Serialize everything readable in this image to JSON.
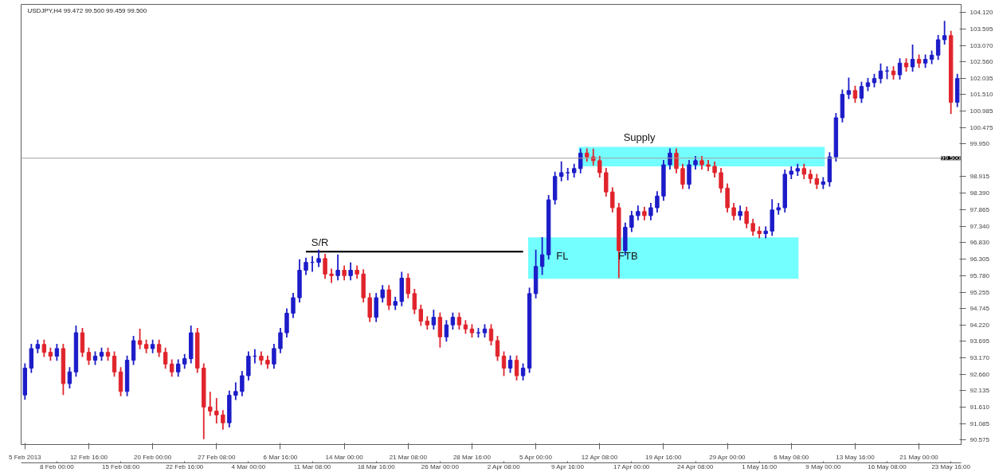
{
  "chart_data": {
    "type": "candlestick",
    "title": "USDJPY,H4 99.472 99.500 99.459 99.500",
    "categories": [
      "5 Feb 2013",
      null,
      null,
      null,
      null,
      "8 Feb 00:00",
      null,
      null,
      null,
      null,
      "12 Feb 16:00",
      null,
      null,
      null,
      null,
      "15 Feb 08:00",
      null,
      null,
      null,
      null,
      "20 Feb 00:00",
      null,
      null,
      null,
      null,
      "22 Feb 16:00",
      null,
      null,
      null,
      null,
      "27 Feb 08:00",
      null,
      null,
      null,
      null,
      "4 Mar 00:00",
      null,
      null,
      null,
      null,
      "6 Mar 16:00",
      null,
      null,
      null,
      null,
      "11 Mar 08:00",
      null,
      null,
      null,
      null,
      "14 Mar 00:00",
      null,
      null,
      null,
      null,
      "18 Mar 16:00",
      null,
      null,
      null,
      null,
      "21 Mar 08:00",
      null,
      null,
      null,
      null,
      "26 Mar 00:00",
      null,
      null,
      null,
      null,
      "28 Mar 16:00",
      null,
      null,
      null,
      null,
      "2 Apr 08:00",
      null,
      null,
      null,
      null,
      "5 Apr 00:00",
      null,
      null,
      null,
      null,
      "9 Apr 16:00",
      null,
      null,
      null,
      null,
      "12 Apr 08:00",
      null,
      null,
      null,
      null,
      "17 Apr 00:00",
      null,
      null,
      null,
      null,
      "19 Apr 16:00",
      null,
      null,
      null,
      null,
      "24 Apr 08:00",
      null,
      null,
      null,
      null,
      "29 Apr 00:00",
      null,
      null,
      null,
      null,
      "1 May 16:00",
      null,
      null,
      null,
      null,
      "6 May 08:00",
      null,
      null,
      null,
      null,
      "9 May 00:00",
      null,
      null,
      null,
      null,
      "13 May 16:00",
      null,
      null,
      null,
      null,
      "16 May 08:00",
      null,
      null,
      null,
      null,
      "21 May 00:00",
      null,
      null,
      null,
      null,
      "23 May 16:00",
      null
    ],
    "ohlc": [
      [
        92.0,
        93.0,
        91.85,
        92.85
      ],
      [
        92.85,
        93.62,
        92.7,
        93.47
      ],
      [
        93.47,
        93.75,
        93.32,
        93.6
      ],
      [
        93.6,
        93.75,
        93.2,
        93.35
      ],
      [
        93.35,
        93.5,
        93.08,
        93.23
      ],
      [
        93.23,
        93.62,
        93.08,
        93.47
      ],
      [
        93.47,
        93.62,
        92.0,
        92.36
      ],
      [
        92.36,
        92.88,
        92.21,
        92.73
      ],
      [
        92.73,
        94.2,
        92.58,
        93.97
      ],
      [
        93.97,
        94.12,
        93.2,
        93.35
      ],
      [
        93.35,
        93.5,
        92.95,
        93.1
      ],
      [
        93.1,
        93.38,
        92.95,
        93.23
      ],
      [
        93.23,
        93.5,
        93.08,
        93.35
      ],
      [
        93.35,
        93.5,
        93.08,
        93.23
      ],
      [
        93.23,
        93.38,
        92.58,
        92.73
      ],
      [
        92.73,
        92.88,
        91.96,
        92.11
      ],
      [
        92.11,
        93.25,
        91.96,
        93.1
      ],
      [
        93.1,
        93.87,
        92.95,
        93.72
      ],
      [
        93.72,
        94.1,
        93.45,
        93.6
      ],
      [
        93.6,
        93.75,
        93.32,
        93.47
      ],
      [
        93.47,
        93.75,
        93.32,
        93.6
      ],
      [
        93.6,
        93.75,
        93.2,
        93.35
      ],
      [
        93.35,
        93.5,
        92.83,
        92.98
      ],
      [
        92.98,
        93.13,
        92.58,
        92.73
      ],
      [
        92.73,
        93.13,
        92.58,
        92.98
      ],
      [
        92.98,
        93.3,
        92.83,
        93.15
      ],
      [
        93.15,
        94.2,
        93.0,
        93.97
      ],
      [
        93.97,
        94.12,
        92.7,
        92.85
      ],
      [
        92.85,
        93.0,
        90.6,
        91.62
      ],
      [
        91.62,
        92.1,
        91.34,
        91.49
      ],
      [
        91.49,
        91.9,
        91.1,
        91.37
      ],
      [
        91.37,
        91.52,
        90.9,
        91.12
      ],
      [
        91.12,
        92.14,
        90.97,
        91.99
      ],
      [
        91.99,
        92.4,
        91.84,
        92.11
      ],
      [
        92.11,
        92.76,
        91.96,
        92.61
      ],
      [
        92.61,
        93.38,
        92.46,
        93.23
      ],
      [
        93.23,
        93.45,
        93.0,
        93.23
      ],
      [
        93.23,
        93.38,
        92.95,
        93.1
      ],
      [
        93.1,
        93.25,
        92.83,
        92.98
      ],
      [
        92.98,
        93.62,
        92.83,
        93.47
      ],
      [
        93.47,
        94.12,
        93.32,
        93.97
      ],
      [
        93.97,
        94.74,
        93.82,
        94.59
      ],
      [
        94.59,
        95.23,
        94.44,
        95.08
      ],
      [
        95.08,
        96.3,
        94.93,
        95.95
      ],
      [
        95.95,
        96.35,
        95.8,
        96.2
      ],
      [
        96.2,
        96.4,
        95.9,
        96.2
      ],
      [
        96.2,
        96.6,
        96.05,
        96.32
      ],
      [
        96.32,
        96.47,
        95.68,
        95.83
      ],
      [
        95.83,
        96.0,
        95.55,
        95.78
      ],
      [
        95.78,
        96.45,
        95.63,
        95.95
      ],
      [
        95.95,
        96.1,
        95.63,
        95.78
      ],
      [
        95.78,
        96.2,
        95.63,
        95.95
      ],
      [
        95.95,
        96.1,
        95.68,
        95.83
      ],
      [
        95.83,
        95.98,
        94.93,
        95.08
      ],
      [
        95.08,
        95.23,
        94.31,
        94.46
      ],
      [
        94.46,
        95.23,
        94.31,
        95.08
      ],
      [
        95.08,
        95.48,
        94.93,
        95.33
      ],
      [
        95.33,
        95.48,
        94.69,
        94.84
      ],
      [
        94.84,
        95.11,
        94.69,
        94.96
      ],
      [
        94.96,
        95.9,
        94.81,
        95.7
      ],
      [
        95.7,
        95.85,
        95.06,
        95.21
      ],
      [
        95.21,
        95.36,
        94.56,
        94.71
      ],
      [
        94.71,
        94.86,
        94.19,
        94.34
      ],
      [
        94.34,
        94.49,
        94.07,
        94.22
      ],
      [
        94.22,
        94.7,
        94.07,
        94.46
      ],
      [
        94.46,
        94.61,
        93.5,
        93.84
      ],
      [
        93.84,
        94.37,
        93.69,
        94.22
      ],
      [
        94.22,
        94.61,
        94.07,
        94.46
      ],
      [
        94.46,
        94.61,
        94.07,
        94.22
      ],
      [
        94.22,
        94.37,
        93.94,
        94.09
      ],
      [
        94.09,
        94.24,
        93.82,
        93.97
      ],
      [
        93.97,
        94.12,
        93.82,
        93.97
      ],
      [
        93.97,
        94.24,
        93.82,
        94.09
      ],
      [
        94.09,
        94.24,
        93.57,
        93.72
      ],
      [
        93.72,
        93.87,
        93.08,
        93.23
      ],
      [
        93.23,
        93.38,
        92.6,
        92.85
      ],
      [
        92.85,
        93.25,
        92.7,
        93.1
      ],
      [
        93.1,
        93.25,
        92.46,
        92.61
      ],
      [
        92.61,
        93.0,
        92.46,
        92.85
      ],
      [
        92.85,
        95.4,
        92.7,
        95.21
      ],
      [
        95.21,
        96.6,
        95.06,
        96.07
      ],
      [
        96.07,
        97.0,
        95.8,
        96.44
      ],
      [
        96.44,
        98.33,
        96.29,
        98.18
      ],
      [
        98.18,
        99.07,
        98.03,
        98.92
      ],
      [
        98.92,
        99.4,
        98.77,
        99.04
      ],
      [
        99.04,
        99.19,
        98.8,
        99.04
      ],
      [
        99.04,
        99.32,
        98.89,
        99.17
      ],
      [
        99.17,
        99.81,
        99.02,
        99.66
      ],
      [
        99.66,
        99.81,
        99.39,
        99.54
      ],
      [
        99.54,
        99.8,
        99.27,
        99.42
      ],
      [
        99.42,
        99.57,
        98.89,
        99.04
      ],
      [
        99.04,
        99.19,
        98.28,
        98.43
      ],
      [
        98.43,
        98.58,
        97.78,
        97.93
      ],
      [
        97.93,
        98.08,
        95.7,
        96.57
      ],
      [
        96.57,
        97.46,
        96.42,
        97.31
      ],
      [
        97.31,
        97.83,
        97.16,
        97.68
      ],
      [
        97.68,
        98.0,
        97.53,
        97.81
      ],
      [
        97.81,
        97.96,
        97.53,
        97.68
      ],
      [
        97.68,
        98.08,
        97.53,
        97.93
      ],
      [
        97.93,
        98.45,
        97.78,
        98.3
      ],
      [
        98.3,
        99.44,
        98.15,
        99.29
      ],
      [
        99.29,
        99.81,
        99.14,
        99.66
      ],
      [
        99.66,
        99.81,
        99.02,
        99.17
      ],
      [
        99.17,
        99.32,
        98.52,
        98.67
      ],
      [
        98.67,
        99.44,
        98.52,
        99.29
      ],
      [
        99.29,
        99.57,
        99.14,
        99.42
      ],
      [
        99.42,
        99.57,
        99.14,
        99.29
      ],
      [
        99.29,
        99.44,
        99.09,
        99.24
      ],
      [
        99.24,
        99.39,
        98.89,
        99.04
      ],
      [
        99.04,
        99.19,
        98.4,
        98.55
      ],
      [
        98.55,
        98.7,
        97.78,
        97.93
      ],
      [
        97.93,
        98.08,
        97.53,
        97.68
      ],
      [
        97.68,
        98.0,
        97.53,
        97.81
      ],
      [
        97.81,
        97.96,
        97.28,
        97.43
      ],
      [
        97.43,
        97.58,
        97.04,
        97.19
      ],
      [
        97.19,
        97.34,
        96.96,
        97.11
      ],
      [
        97.11,
        97.34,
        96.96,
        97.19
      ],
      [
        97.19,
        98.2,
        97.04,
        97.86
      ],
      [
        97.86,
        98.08,
        97.71,
        97.93
      ],
      [
        97.93,
        99.14,
        97.78,
        98.99
      ],
      [
        98.99,
        99.24,
        98.84,
        99.09
      ],
      [
        99.09,
        99.32,
        98.94,
        99.17
      ],
      [
        99.17,
        99.32,
        98.84,
        98.99
      ],
      [
        98.99,
        99.14,
        98.7,
        98.85
      ],
      [
        98.85,
        99.0,
        98.52,
        98.67
      ],
      [
        98.67,
        98.9,
        98.52,
        98.75
      ],
      [
        98.75,
        99.69,
        98.6,
        99.54
      ],
      [
        99.54,
        100.93,
        99.39,
        100.78
      ],
      [
        100.78,
        101.67,
        100.63,
        101.52
      ],
      [
        101.52,
        102.05,
        101.37,
        101.64
      ],
      [
        101.64,
        101.79,
        101.25,
        101.4
      ],
      [
        101.4,
        101.92,
        101.25,
        101.77
      ],
      [
        101.77,
        102.04,
        101.62,
        101.89
      ],
      [
        101.89,
        102.17,
        101.74,
        102.02
      ],
      [
        102.02,
        102.5,
        101.87,
        102.26
      ],
      [
        102.26,
        102.41,
        102.0,
        102.26
      ],
      [
        102.26,
        102.41,
        101.99,
        102.14
      ],
      [
        102.14,
        102.66,
        101.99,
        102.51
      ],
      [
        102.51,
        102.66,
        102.24,
        102.39
      ],
      [
        102.39,
        103.1,
        102.24,
        102.63
      ],
      [
        102.63,
        102.78,
        102.36,
        102.51
      ],
      [
        102.51,
        102.78,
        102.36,
        102.63
      ],
      [
        102.63,
        102.91,
        102.48,
        102.76
      ],
      [
        102.76,
        103.4,
        102.61,
        103.25
      ],
      [
        103.25,
        103.85,
        103.1,
        103.38
      ],
      [
        103.38,
        103.53,
        100.9,
        101.27
      ],
      [
        101.27,
        102.17,
        101.12,
        102.02
      ]
    ],
    "colors": [
      "#1c1cc8",
      "#1c1cc8",
      "#1c1cc8",
      "#e0242c",
      "#e0242c",
      "#1c1cc8",
      "#e0242c",
      "#1c1cc8",
      "#1c1cc8",
      "#e0242c",
      "#e0242c",
      "#1c1cc8",
      "#1c1cc8",
      "#e0242c",
      "#e0242c",
      "#e0242c",
      "#1c1cc8",
      "#1c1cc8",
      "#e0242c",
      "#e0242c",
      "#1c1cc8",
      "#e0242c",
      "#e0242c",
      "#e0242c",
      "#1c1cc8",
      "#1c1cc8",
      "#1c1cc8",
      "#e0242c",
      "#e0242c",
      "#e0242c",
      "#e0242c",
      "#e0242c",
      "#1c1cc8",
      "#1c1cc8",
      "#1c1cc8",
      "#1c1cc8",
      "#1c1cc8",
      "#e0242c",
      "#e0242c",
      "#1c1cc8",
      "#1c1cc8",
      "#1c1cc8",
      "#1c1cc8",
      "#1c1cc8",
      "#1c1cc8",
      "#1c1cc8",
      "#1c1cc8",
      "#e0242c",
      "#e0242c",
      "#1c1cc8",
      "#e0242c",
      "#1c1cc8",
      "#e0242c",
      "#e0242c",
      "#e0242c",
      "#1c1cc8",
      "#1c1cc8",
      "#e0242c",
      "#1c1cc8",
      "#1c1cc8",
      "#e0242c",
      "#e0242c",
      "#e0242c",
      "#e0242c",
      "#1c1cc8",
      "#e0242c",
      "#1c1cc8",
      "#1c1cc8",
      "#e0242c",
      "#e0242c",
      "#e0242c",
      "#1c1cc8",
      "#1c1cc8",
      "#e0242c",
      "#e0242c",
      "#e0242c",
      "#1c1cc8",
      "#e0242c",
      "#1c1cc8",
      "#1c1cc8",
      "#1c1cc8",
      "#1c1cc8",
      "#1c1cc8",
      "#1c1cc8",
      "#1c1cc8",
      "#1c1cc8",
      "#1c1cc8",
      "#1c1cc8",
      "#e0242c",
      "#e0242c",
      "#e0242c",
      "#e0242c",
      "#e0242c",
      "#e0242c",
      "#1c1cc8",
      "#1c1cc8",
      "#1c1cc8",
      "#e0242c",
      "#1c1cc8",
      "#1c1cc8",
      "#1c1cc8",
      "#1c1cc8",
      "#e0242c",
      "#e0242c",
      "#1c1cc8",
      "#1c1cc8",
      "#e0242c",
      "#e0242c",
      "#e0242c",
      "#e0242c",
      "#e0242c",
      "#e0242c",
      "#1c1cc8",
      "#e0242c",
      "#e0242c",
      "#e0242c",
      "#1c1cc8",
      "#1c1cc8",
      "#1c1cc8",
      "#1c1cc8",
      "#1c1cc8",
      "#1c1cc8",
      "#e0242c",
      "#e0242c",
      "#e0242c",
      "#1c1cc8",
      "#1c1cc8",
      "#1c1cc8",
      "#1c1cc8",
      "#1c1cc8",
      "#e0242c",
      "#1c1cc8",
      "#1c1cc8",
      "#1c1cc8",
      "#1c1cc8",
      "#1c1cc8",
      "#e0242c",
      "#1c1cc8",
      "#e0242c",
      "#1c1cc8",
      "#e0242c",
      "#1c1cc8",
      "#1c1cc8",
      "#1c1cc8",
      "#1c1cc8",
      "#e0242c",
      "#1c1cc8"
    ],
    "series": [
      {
        "type": "line",
        "color": "#000000",
        "values": [
          null,
          null,
          null,
          null,
          null,
          null,
          null,
          null,
          null,
          null,
          null,
          null,
          null,
          null,
          null,
          null,
          null,
          null,
          null,
          null,
          null,
          null,
          null,
          null,
          null,
          null,
          null,
          null,
          null,
          null,
          null,
          null,
          null,
          null,
          null,
          null,
          null,
          null,
          null,
          null,
          null,
          null,
          null,
          null,
          96.54,
          96.54,
          96.54,
          96.54,
          96.54,
          96.54,
          96.54,
          96.54,
          96.54,
          96.54,
          96.54,
          96.54,
          96.54,
          96.54,
          96.54,
          96.54,
          96.54,
          96.54,
          96.54,
          96.54,
          96.54,
          96.54,
          96.54,
          96.54,
          96.54,
          96.54,
          96.54,
          96.54,
          96.54,
          96.54,
          96.54,
          96.54,
          96.54,
          96.54,
          96.54,
          null,
          null,
          null,
          null,
          null,
          null,
          null,
          null,
          null,
          null,
          null,
          null,
          null,
          null,
          null,
          null,
          null,
          null,
          null,
          null,
          null,
          null,
          null,
          null,
          null,
          null,
          null,
          null,
          null,
          null,
          null,
          null,
          null,
          null,
          null,
          null,
          null,
          null,
          null,
          null,
          null,
          null,
          null,
          null,
          null,
          null,
          null,
          null,
          null,
          null,
          null,
          null,
          null,
          null,
          null,
          null,
          null,
          null,
          null,
          null,
          null,
          null,
          null,
          null,
          null,
          null,
          null,
          null
        ]
      }
    ],
    "annotations": [
      "S/R",
      "FL",
      "FTB"
    ],
    "bands": [
      {
        "axis": "y",
        "from": 99.24,
        "to": 99.86,
        "label": "Supply",
        "color": "#00ffff"
      },
      {
        "axis": "y",
        "from": 95.68,
        "to": 96.99,
        "color": "#00ffff"
      }
    ],
    "ref_lines": [
      {
        "axis": "y",
        "value": 99.5,
        "label": "99.500",
        "color": "#a0a0a0"
      }
    ],
    "ylim": [
      90.43,
      104.37
    ],
    "yticks": [
      {
        "value": 90.575,
        "label": "90.575"
      },
      {
        "value": 91.085,
        "label": "91.085"
      },
      {
        "value": 91.61,
        "label": "91.610"
      },
      {
        "value": 92.135,
        "label": "92.135"
      },
      {
        "value": 92.66,
        "label": "92.660"
      },
      {
        "value": 93.17,
        "label": "93.170"
      },
      {
        "value": 93.695,
        "label": "93.695"
      },
      {
        "value": 94.22,
        "label": "94.220"
      },
      {
        "value": 94.745,
        "label": "94.745"
      },
      {
        "value": 95.255,
        "label": "95.255"
      },
      {
        "value": 95.78,
        "label": "95.780"
      },
      {
        "value": 96.305,
        "label": "96.305"
      },
      {
        "value": 96.83,
        "label": "96.830"
      },
      {
        "value": 97.34,
        "label": "97.340"
      },
      {
        "value": 97.865,
        "label": "97.865"
      },
      {
        "value": 98.39,
        "label": "98.390"
      },
      {
        "value": 98.915,
        "label": "98.915"
      },
      {
        "value": 99.95,
        "label": "99.950"
      },
      {
        "value": 100.475,
        "label": "100.475"
      },
      {
        "value": 100.985,
        "label": "100.985"
      },
      {
        "value": 101.51,
        "label": "101.510"
      },
      {
        "value": 102.035,
        "label": "102.035"
      },
      {
        "value": 102.56,
        "label": "102.560"
      },
      {
        "value": 103.07,
        "label": "103.070"
      },
      {
        "value": 103.595,
        "label": "103.595"
      },
      {
        "value": 104.12,
        "label": "104.120"
      }
    ],
    "grid": false
  }
}
